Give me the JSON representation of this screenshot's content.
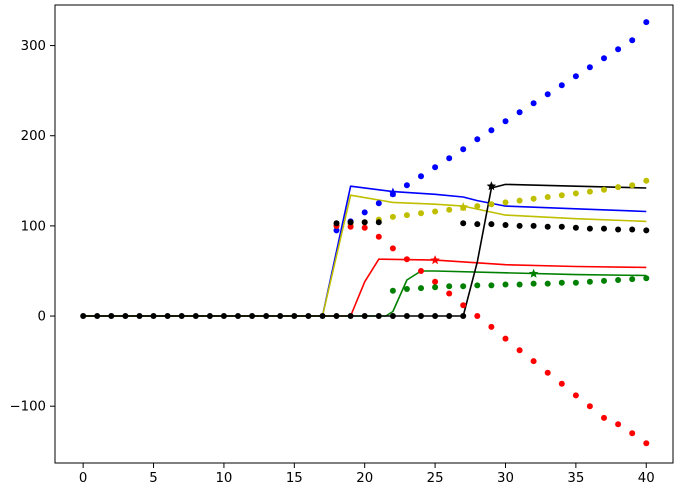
{
  "chart_data": {
    "type": "line",
    "title": "",
    "xlabel": "",
    "ylabel": "",
    "xlim": [
      -2,
      41.9
    ],
    "ylim": [
      -163,
      345
    ],
    "x_ticks": [
      0,
      5,
      10,
      15,
      20,
      25,
      30,
      35,
      40
    ],
    "y_ticks": [
      -100,
      0,
      100,
      200,
      300
    ],
    "x_tick_labels": [
      "0",
      "5",
      "10",
      "15",
      "20",
      "25",
      "30",
      "35",
      "40"
    ],
    "y_tick_labels": [
      "−100",
      "0",
      "100",
      "200",
      "300"
    ],
    "grid": false,
    "legend": "none",
    "colors": {
      "blue": "#0000ff",
      "yellow": "#bfbf00",
      "red": "#ff0000",
      "green": "#008000",
      "black": "#000000"
    },
    "series": [
      {
        "color": "#0000ff",
        "style": "solid-line",
        "x": [
          0,
          17,
          19,
          22,
          25,
          27,
          28,
          30,
          35,
          40
        ],
        "y": [
          0,
          0,
          144,
          138,
          135,
          132,
          128,
          122,
          119,
          116
        ]
      },
      {
        "color": "#bfbf00",
        "style": "solid-line",
        "x": [
          0,
          17,
          19,
          22,
          25,
          27,
          30,
          35,
          40
        ],
        "y": [
          0,
          0,
          134,
          126,
          124,
          122,
          112,
          108,
          105
        ]
      },
      {
        "color": "#ff0000",
        "style": "solid-line",
        "x": [
          0,
          19,
          20,
          21,
          25,
          30,
          35,
          40
        ],
        "y": [
          0,
          0,
          38,
          63,
          62,
          57,
          55,
          54
        ]
      },
      {
        "color": "#008000",
        "style": "solid-line",
        "x": [
          0,
          21.5,
          22,
          23,
          24,
          25,
          30,
          35,
          40
        ],
        "y": [
          0,
          0,
          5,
          40,
          50,
          50,
          48,
          46,
          45
        ]
      },
      {
        "color": "#000000",
        "style": "solid-line",
        "x": [
          0,
          27,
          28,
          29,
          30,
          35,
          40
        ],
        "y": [
          0,
          0,
          60,
          142,
          146,
          144,
          142
        ]
      },
      {
        "color": "#0000ff",
        "style": "dotted",
        "x": [
          18,
          19,
          20,
          21,
          22,
          23,
          24,
          25,
          26,
          27,
          28,
          29,
          30,
          31,
          32,
          33,
          34,
          35,
          36,
          37,
          38,
          39,
          40
        ],
        "y": [
          95,
          105,
          115,
          125,
          135,
          145,
          155,
          165,
          175,
          185,
          196,
          206,
          216,
          226,
          236,
          246,
          256,
          266,
          276,
          286,
          296,
          306,
          326
        ]
      },
      {
        "color": "#bfbf00",
        "style": "dotted",
        "x": [
          18,
          19,
          20,
          21,
          22,
          23,
          24,
          25,
          26,
          27,
          28,
          29,
          30,
          31,
          32,
          33,
          34,
          35,
          36,
          37,
          38,
          39,
          40
        ],
        "y": [
          100,
          102,
          104,
          107,
          110,
          112,
          114,
          116,
          118,
          120,
          122,
          124,
          126,
          128,
          130,
          132,
          134,
          136,
          138,
          140,
          143,
          145,
          150
        ]
      },
      {
        "color": "#ff0000",
        "style": "dotted",
        "x": [
          18,
          19,
          20,
          21,
          22,
          23,
          24,
          25,
          26,
          27,
          28,
          29,
          30,
          31,
          32,
          33,
          34,
          35,
          36,
          37,
          38,
          39,
          40
        ],
        "y": [
          100,
          99,
          98,
          88,
          75,
          63,
          50,
          38,
          25,
          12,
          0,
          -12,
          -25,
          -38,
          -50,
          -63,
          -75,
          -88,
          -100,
          -113,
          -120,
          -130,
          -141
        ]
      },
      {
        "color": "#008000",
        "style": "dotted",
        "x": [
          22,
          23,
          24,
          25,
          26,
          27,
          28,
          29,
          30,
          31,
          32,
          33,
          34,
          35,
          36,
          37,
          38,
          39,
          40
        ],
        "y": [
          28,
          30,
          31,
          32,
          33,
          33,
          34,
          34,
          35,
          35,
          36,
          36,
          37,
          37,
          38,
          39,
          40,
          41,
          42
        ]
      },
      {
        "color": "#000000",
        "style": "dotted",
        "x": [
          0,
          1,
          2,
          3,
          4,
          5,
          6,
          7,
          8,
          9,
          10,
          11,
          12,
          13,
          14,
          15,
          16,
          17,
          18,
          19,
          20,
          21,
          22,
          23,
          24,
          25,
          26,
          27
        ],
        "y": [
          0,
          0,
          0,
          0,
          0,
          0,
          0,
          0,
          0,
          0,
          0,
          0,
          0,
          0,
          0,
          0,
          0,
          0,
          0,
          0,
          0,
          0,
          0,
          0,
          0,
          0,
          0,
          0
        ]
      },
      {
        "color": "#000000",
        "style": "dotted",
        "x": [
          18,
          19,
          20,
          21
        ],
        "y": [
          103,
          104,
          104,
          104
        ]
      },
      {
        "color": "#000000",
        "style": "dotted",
        "x": [
          27,
          28,
          29,
          30,
          31,
          32,
          33,
          34,
          35,
          36,
          37,
          38,
          39,
          40
        ],
        "y": [
          103,
          102,
          102,
          101,
          100,
          100,
          99,
          99,
          98,
          97,
          97,
          96,
          96,
          95
        ]
      }
    ],
    "markers": [
      {
        "color": "#0000ff",
        "x": 22,
        "y": 137,
        "shape": "star"
      },
      {
        "color": "#bfbf00",
        "x": 27,
        "y": 121,
        "shape": "star"
      },
      {
        "color": "#ff0000",
        "x": 25,
        "y": 62,
        "shape": "star"
      },
      {
        "color": "#008000",
        "x": 32,
        "y": 47,
        "shape": "star"
      },
      {
        "color": "#000000",
        "x": 29,
        "y": 144,
        "shape": "star"
      }
    ]
  }
}
